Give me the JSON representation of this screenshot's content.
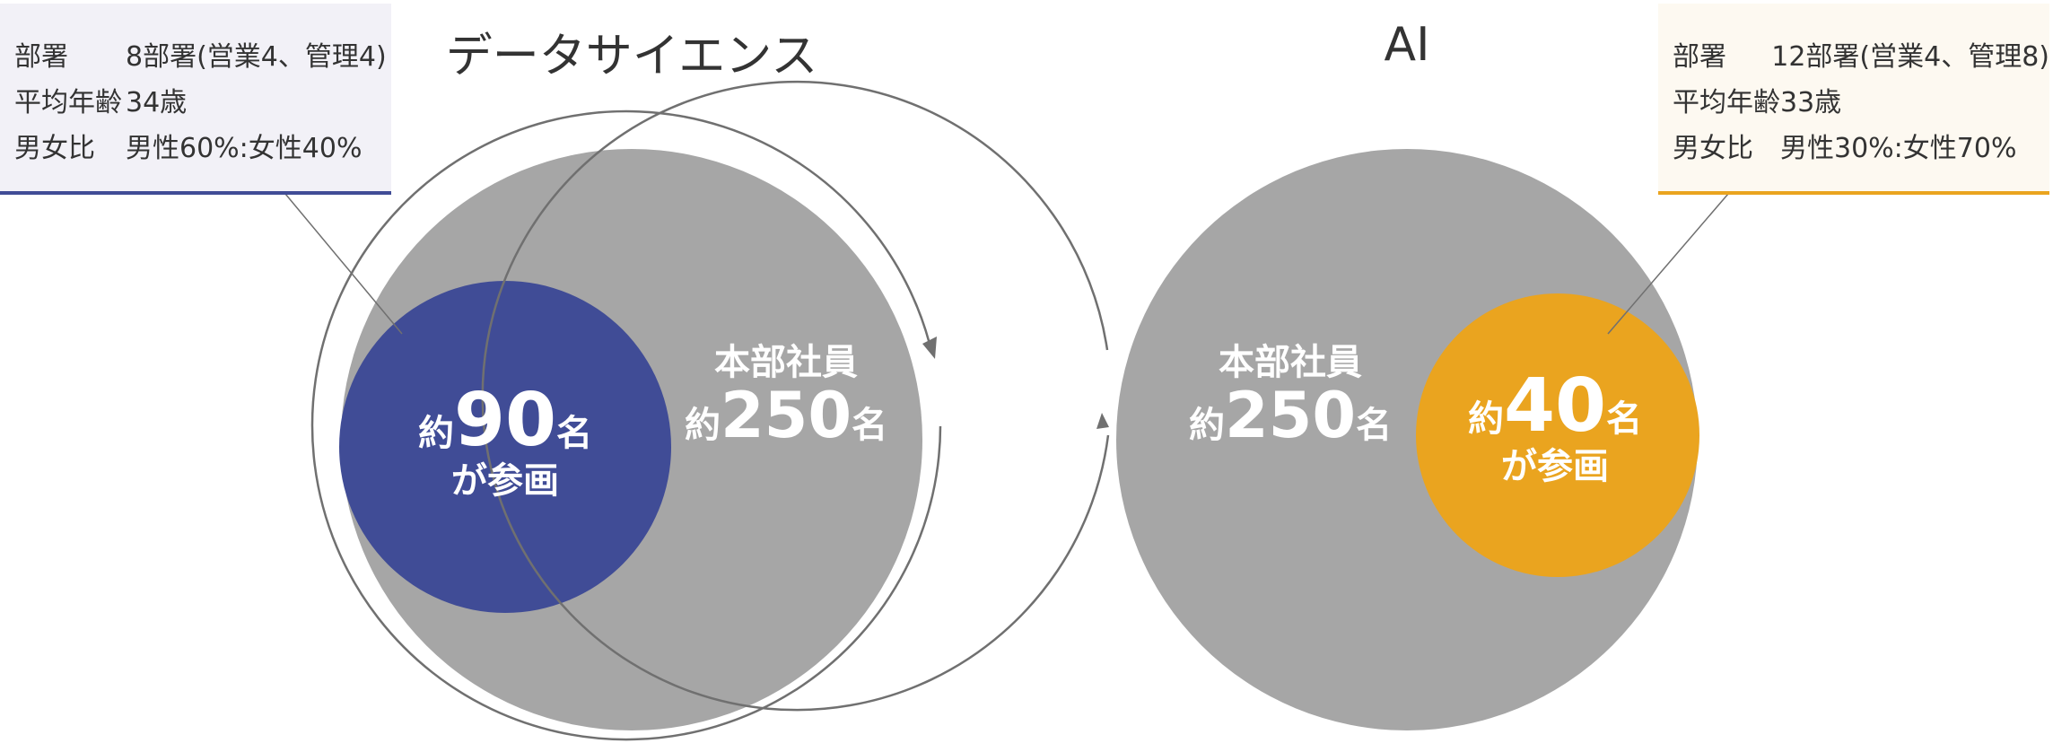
{
  "left_group": {
    "title": "データサイエンス",
    "info_rows": [
      {
        "key": "部署",
        "value": "8部署(営業4、管理4)"
      },
      {
        "key": "平均年齢",
        "value": "34歳"
      },
      {
        "key": "男女比",
        "value": "男性60%:女性40%"
      }
    ],
    "base_circle": {
      "line1": "本部社員",
      "prefix": "約",
      "number": "250",
      "suffix": "名"
    },
    "participant_circle": {
      "prefix": "約",
      "number": "90",
      "suffix": "名",
      "sub": "が参画"
    },
    "participant_color": "#404c96"
  },
  "right_group": {
    "title": "AI",
    "info_rows": [
      {
        "key": "部署",
        "value": "12部署(営業4、管理8)"
      },
      {
        "key": "平均年齢",
        "value": "33歳"
      },
      {
        "key": "男女比",
        "value": "男性30%:女性70%"
      }
    ],
    "base_circle": {
      "line1": "本部社員",
      "prefix": "約",
      "number": "250",
      "suffix": "名"
    },
    "participant_circle": {
      "prefix": "約",
      "number": "40",
      "suffix": "名",
      "sub": "が参画"
    },
    "participant_color": "#eaa41f"
  },
  "colors": {
    "base_circle": "#a6a6a6",
    "ring": "#707070",
    "info_bg_left": "#f2f1f7",
    "info_bg_right": "#fdf9f1",
    "text": "#333333"
  }
}
